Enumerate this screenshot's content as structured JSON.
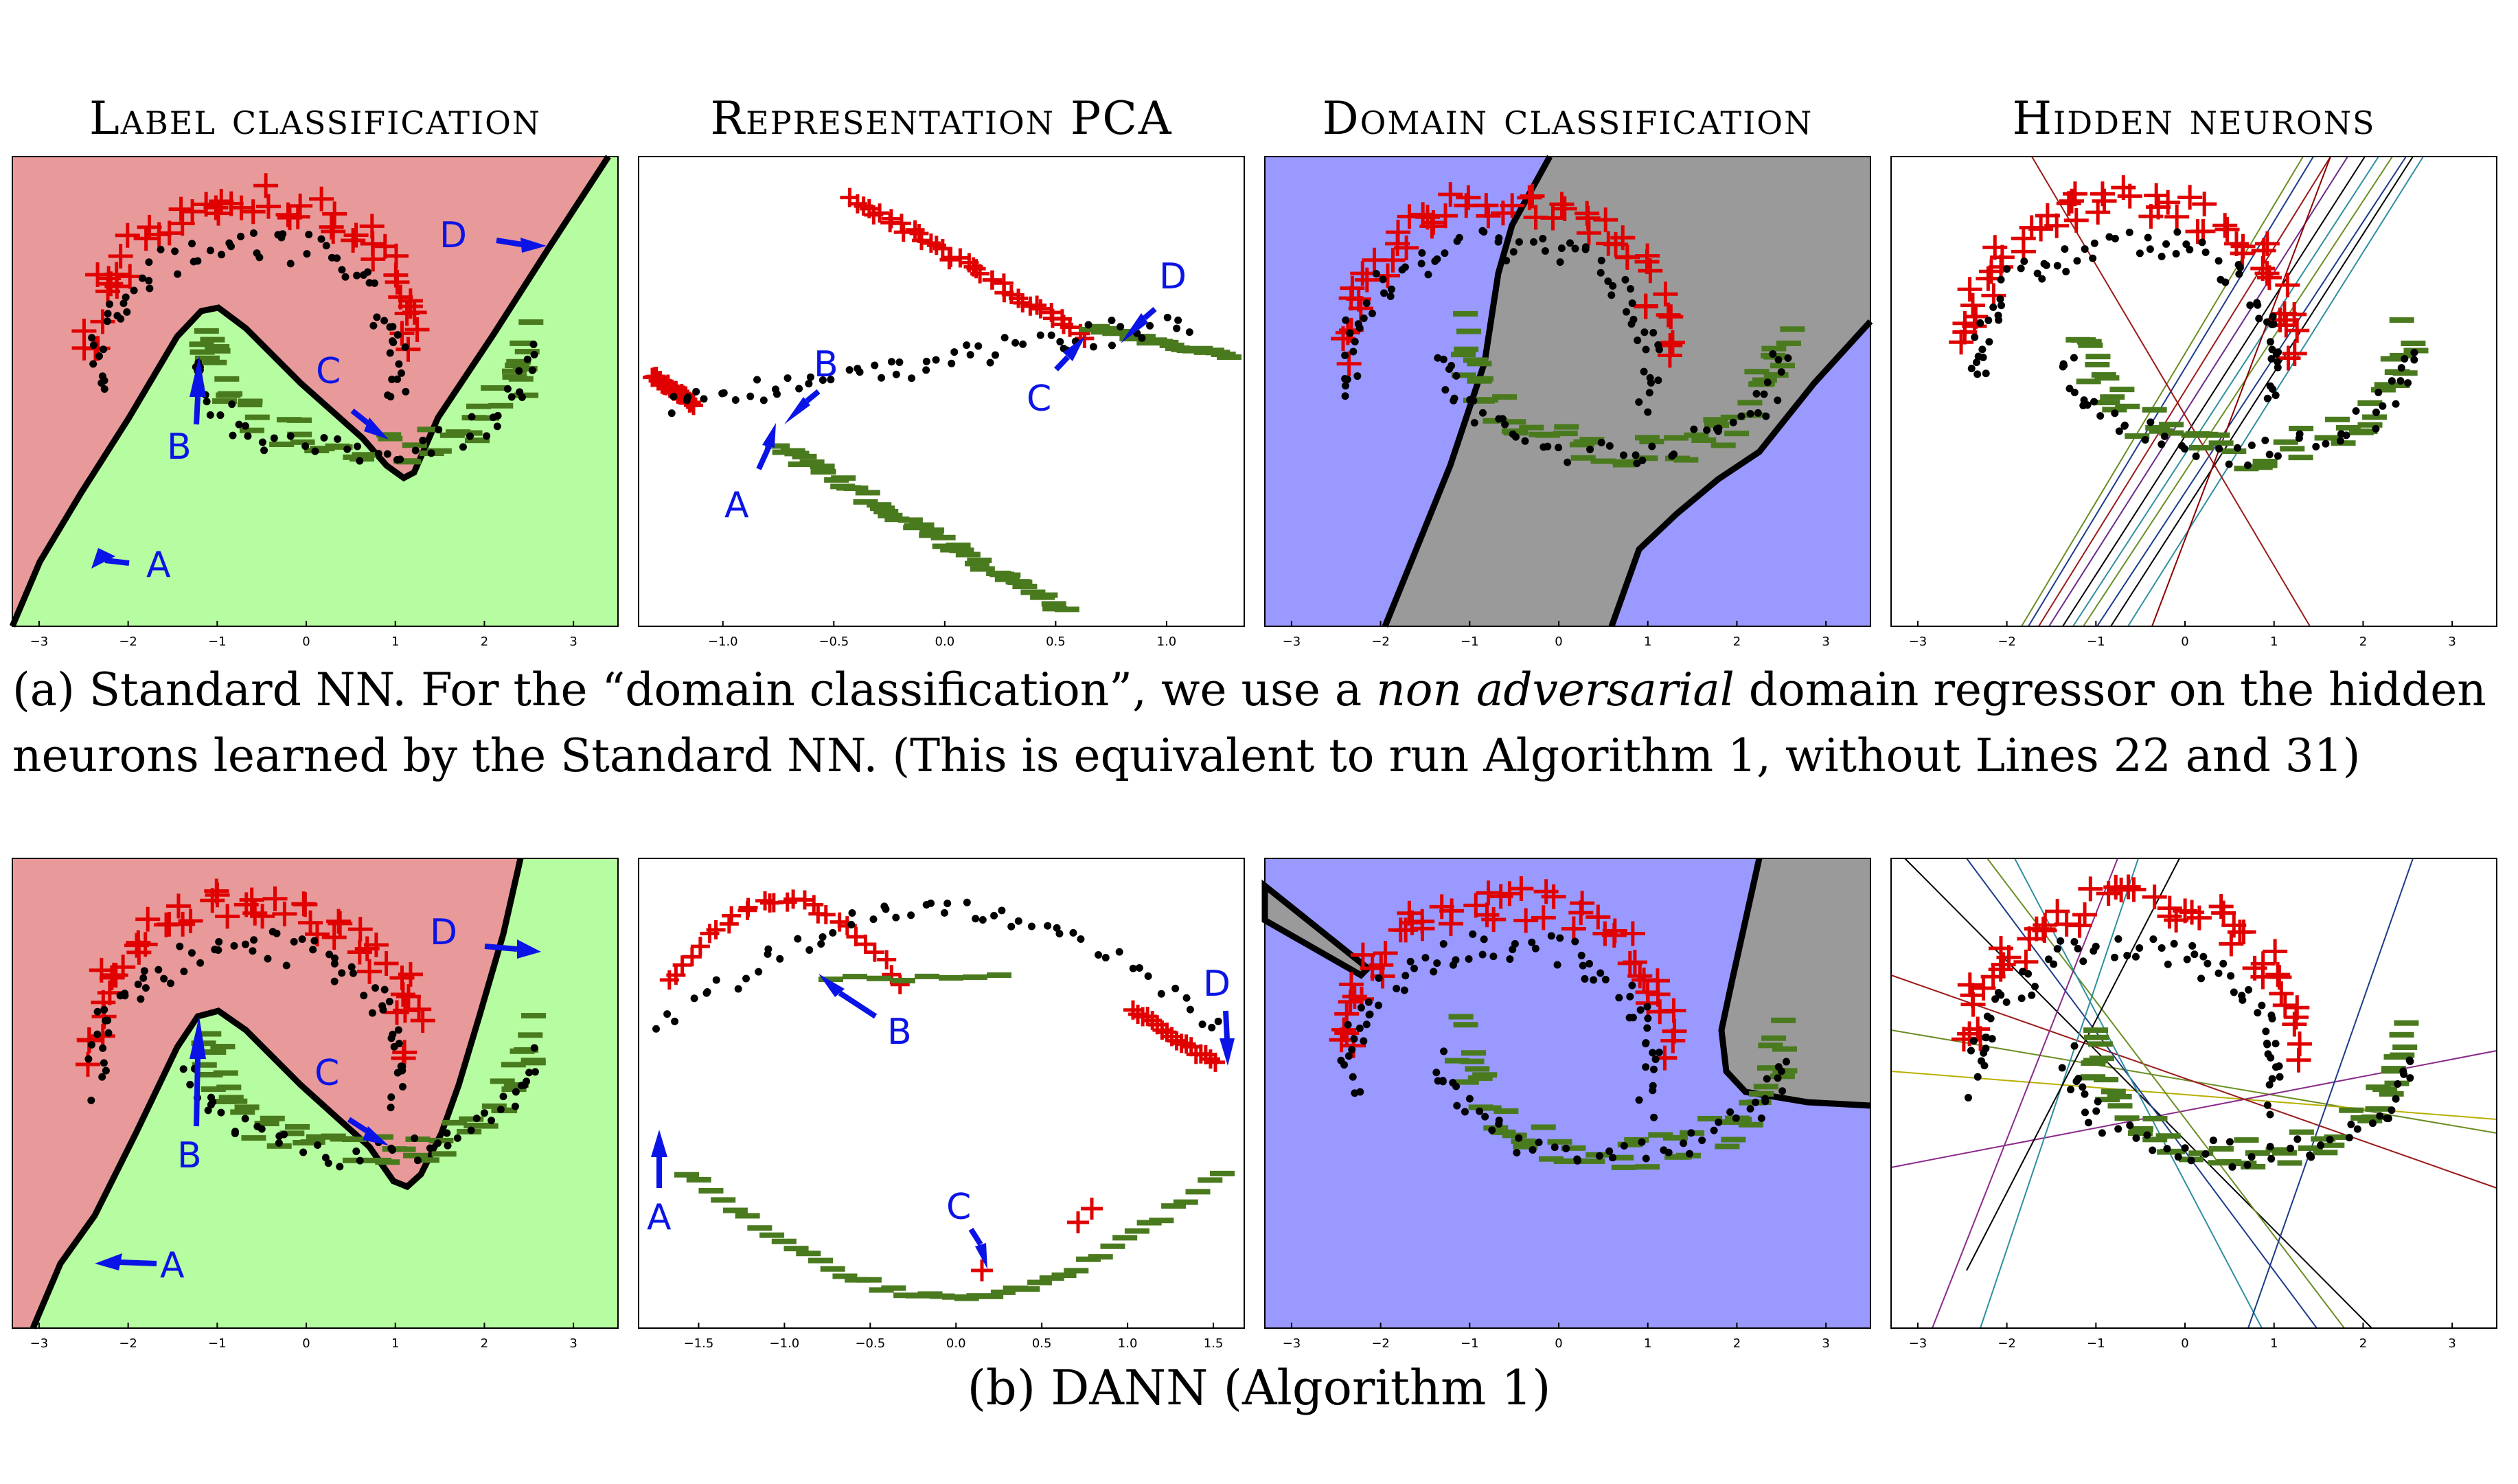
{
  "column_titles": [
    "Label classification",
    "Representation PCA",
    "Domain classification",
    "Hidden neurons"
  ],
  "caption_a": {
    "line1_pre": "(a) Standard NN. For the “domain classification”, we use a ",
    "line1_em": "non adversarial",
    "line1_post": " domain regressor on the hidden",
    "line2": "neurons learned by the Standard NN. (This is equivalent to run Algorithm 1, without Lines 22 and 31)"
  },
  "caption_b": "(b) DANN (Algorithm 1)",
  "point_labels": [
    "A",
    "B",
    "C",
    "D"
  ],
  "colors": {
    "source_pos": "#e00000",
    "source_neg": "#4a7a1e",
    "target": "#000000",
    "region_red": "#e89a9a",
    "region_green": "#b6fca0",
    "region_blue": "#9999ff",
    "region_gray": "#9a9a9a",
    "arrow": "#0b14e6"
  },
  "chart_data": [
    {
      "type": "scatter",
      "title": "Label classification",
      "row": "a",
      "xticks": [
        "−3",
        "−2",
        "−1",
        "0",
        "1",
        "2",
        "3"
      ],
      "xlim": [
        -3.3,
        3.5
      ]
    },
    {
      "type": "scatter",
      "title": "Representation PCA",
      "row": "a",
      "xticks": [
        "−1.0",
        "−0.5",
        "0.0",
        "0.5",
        "1.0"
      ],
      "xlim": [
        -1.38,
        1.35
      ]
    },
    {
      "type": "scatter",
      "title": "Domain classification",
      "row": "a",
      "xticks": [
        "−3",
        "−2",
        "−1",
        "0",
        "1",
        "2",
        "3"
      ],
      "xlim": [
        -3.3,
        3.5
      ]
    },
    {
      "type": "scatter",
      "title": "Hidden neurons",
      "row": "a",
      "xticks": [
        "−3",
        "−2",
        "−1",
        "0",
        "1",
        "2",
        "3"
      ],
      "xlim": [
        -3.3,
        3.5
      ]
    },
    {
      "type": "scatter",
      "title": "Label classification",
      "row": "b",
      "xticks": [
        "−3",
        "−2",
        "−1",
        "0",
        "1",
        "2",
        "3"
      ],
      "xlim": [
        -3.3,
        3.5
      ]
    },
    {
      "type": "scatter",
      "title": "Representation PCA",
      "row": "b",
      "xticks": [
        "−1.5",
        "−1.0",
        "−0.5",
        "0.0",
        "0.5",
        "1.0",
        "1.5"
      ],
      "xlim": [
        -1.85,
        1.68
      ]
    },
    {
      "type": "scatter",
      "title": "Domain classification",
      "row": "b",
      "xticks": [
        "−3",
        "−2",
        "−1",
        "0",
        "1",
        "2",
        "3"
      ],
      "xlim": [
        -3.3,
        3.5
      ]
    },
    {
      "type": "scatter",
      "title": "Hidden neurons",
      "row": "b",
      "xticks": [
        "−3",
        "−2",
        "−1",
        "0",
        "1",
        "2",
        "3"
      ],
      "xlim": [
        -3.3,
        3.5
      ]
    }
  ]
}
